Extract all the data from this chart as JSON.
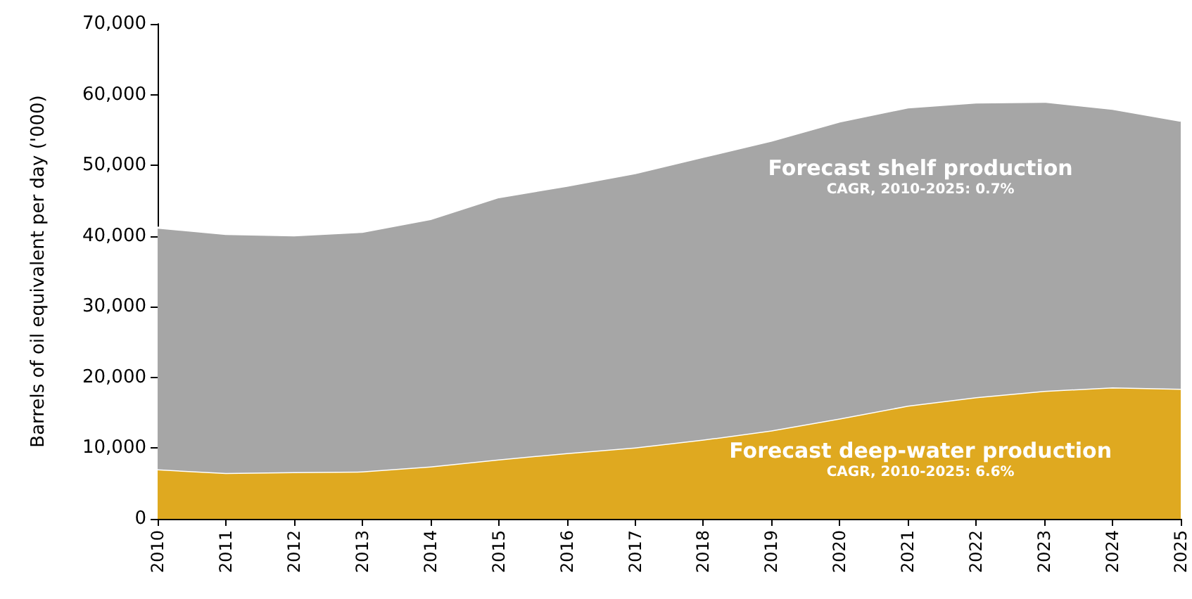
{
  "chart_data": {
    "type": "area",
    "stacked": true,
    "ylabel": "Barrels of oil equivalent per day ('000)",
    "categories": [
      "2010",
      "2011",
      "2012",
      "2013",
      "2014",
      "2015",
      "2016",
      "2017",
      "2018",
      "2019",
      "2020",
      "2021",
      "2022",
      "2023",
      "2024",
      "2025"
    ],
    "series": [
      {
        "name": "Forecast deep-water production",
        "color": "#dfa920",
        "values": [
          7000,
          6500,
          6600,
          6700,
          7400,
          8400,
          9300,
          10100,
          11200,
          12500,
          14200,
          16000,
          17200,
          18100,
          18600,
          18400
        ]
      },
      {
        "name": "Forecast shelf production",
        "color": "#a6a6a6",
        "values": [
          34200,
          33800,
          33500,
          33900,
          35000,
          37100,
          37800,
          38800,
          40000,
          41000,
          42000,
          42200,
          41700,
          40900,
          39400,
          37900
        ]
      }
    ],
    "annotations": [
      "CAGR, 2010-2025: 6.6%",
      "CAGR, 2010-2025: 0.7%"
    ],
    "ylim": [
      0,
      70000
    ],
    "yticks": [
      {
        "value": 0,
        "label": "0"
      },
      {
        "value": 10000,
        "label": "10,000"
      },
      {
        "value": 20000,
        "label": "20,000"
      },
      {
        "value": 30000,
        "label": "30,000"
      },
      {
        "value": 40000,
        "label": "40,000"
      },
      {
        "value": 50000,
        "label": "50,000"
      },
      {
        "value": 60000,
        "label": "60,000"
      },
      {
        "value": 70000,
        "label": "70,000"
      }
    ],
    "grid": false,
    "legend": false,
    "marker": "none"
  }
}
